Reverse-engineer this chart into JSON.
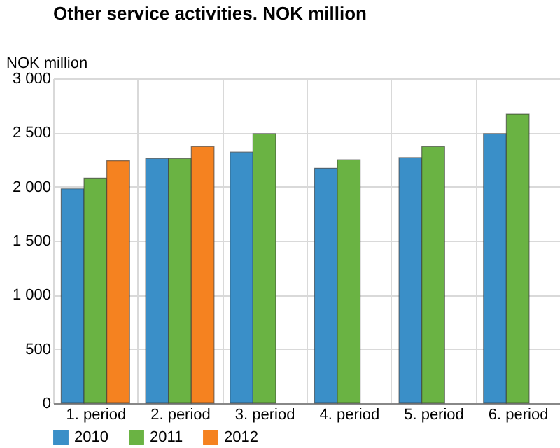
{
  "chart_data": {
    "type": "bar",
    "title": "Other service activities. NOK million",
    "ylabel": "NOK million",
    "categories": [
      "1. period",
      "2. period",
      "3. period",
      "4. period",
      "5. period",
      "6. period"
    ],
    "series": [
      {
        "name": "2010",
        "color": "#3a8fc8",
        "values": [
          1980,
          2260,
          2320,
          2170,
          2270,
          2490
        ]
      },
      {
        "name": "2011",
        "color": "#6ab343",
        "values": [
          2080,
          2260,
          2490,
          2250,
          2370,
          2670
        ]
      },
      {
        "name": "2012",
        "color": "#f58220",
        "values": [
          2240,
          2370,
          null,
          null,
          null,
          null
        ]
      }
    ],
    "ylim": [
      0,
      3000
    ],
    "yticks": [
      0,
      500,
      {
        "value": 1000,
        "label": "1 000"
      },
      {
        "value": 1500,
        "label": "1 500"
      },
      {
        "value": 2000,
        "label": "2 000"
      },
      {
        "value": 2500,
        "label": "2 500"
      },
      {
        "value": 3000,
        "label": "3 000"
      }
    ],
    "grid": true,
    "legend": "bottom"
  }
}
